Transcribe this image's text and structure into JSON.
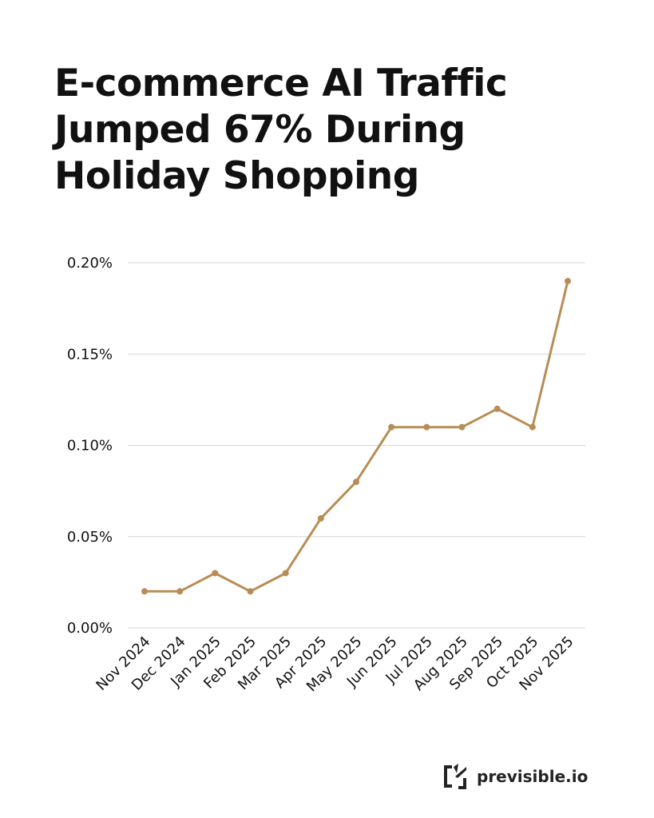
{
  "header": {
    "title_lines": [
      "E-commerce AI Traffic",
      "Jumped 67% During",
      "Holiday Shopping"
    ]
  },
  "chart_data": {
    "type": "line",
    "title": "E-commerce AI Traffic Jumped 67% During Holiday Shopping",
    "categories": [
      "Nov 2024",
      "Dec 2024",
      "Jan 2025",
      "Feb 2025",
      "Mar 2025",
      "Apr 2025",
      "May 2025",
      "Jun 2025",
      "Jul 2025",
      "Aug 2025",
      "Sep 2025",
      "Oct 2025",
      "Nov 2025"
    ],
    "values": [
      0.02,
      0.02,
      0.03,
      0.02,
      0.03,
      0.06,
      0.08,
      0.11,
      0.11,
      0.11,
      0.12,
      0.11,
      0.19
    ],
    "ylim": [
      0,
      0.2
    ],
    "yticks": [
      0,
      0.05,
      0.1,
      0.15,
      0.2
    ],
    "ytick_labels": [
      "0.00%",
      "0.05%",
      "0.10%",
      "0.15%",
      "0.20%"
    ],
    "xlabel": "",
    "ylabel": "",
    "grid": "horizontal",
    "line_color": "#b88d55"
  },
  "footer": {
    "brand_name": "previsible.io",
    "logo_icon": "previsible-logo-icon"
  }
}
